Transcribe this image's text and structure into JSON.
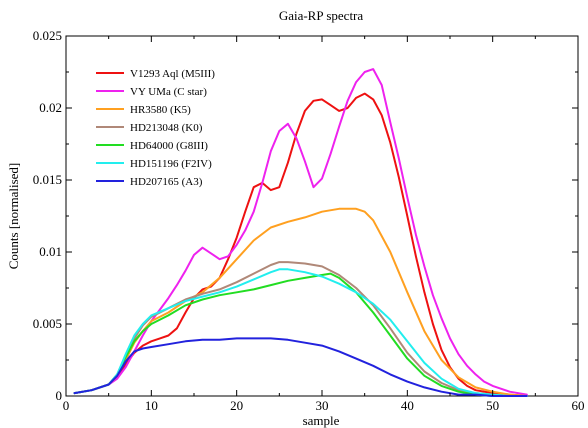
{
  "chart_data": {
    "type": "line",
    "title": "Gaia-RP spectra",
    "xlabel": "sample",
    "ylabel": "Counts [normalised]",
    "xlim": [
      0,
      60
    ],
    "ylim": [
      0,
      0.025
    ],
    "xticks": [
      0,
      10,
      20,
      30,
      40,
      50,
      60
    ],
    "xtick_labels": [
      "0",
      "10",
      "20",
      "30",
      "40",
      "50",
      "60"
    ],
    "yticks": [
      0,
      0.005,
      0.01,
      0.015,
      0.02,
      0.025
    ],
    "ytick_labels": [
      "0",
      "0.005",
      "0.01",
      "0.015",
      "0.02",
      "0.025"
    ],
    "grid": false,
    "legend_position": "top-left",
    "series": [
      {
        "name": "V1293 Aql (M5III)",
        "color": "#ee1111",
        "x": [
          1,
          3,
          5,
          6,
          7,
          8,
          9,
          10,
          11,
          12,
          13,
          14,
          15,
          16,
          17,
          18,
          19,
          20,
          21,
          22,
          23,
          24,
          25,
          26,
          27,
          28,
          29,
          30,
          31,
          32,
          33,
          34,
          35,
          36,
          37,
          38,
          39,
          40,
          41,
          42,
          43,
          44,
          45,
          46,
          47,
          48,
          50,
          52,
          54
        ],
        "y": [
          0.0002,
          0.0004,
          0.0008,
          0.0013,
          0.0022,
          0.003,
          0.0035,
          0.0038,
          0.004,
          0.0042,
          0.0047,
          0.0058,
          0.0068,
          0.0074,
          0.0076,
          0.0082,
          0.0095,
          0.011,
          0.0128,
          0.0145,
          0.0148,
          0.0143,
          0.0145,
          0.0162,
          0.0182,
          0.0198,
          0.0205,
          0.0206,
          0.0202,
          0.0198,
          0.02,
          0.0207,
          0.021,
          0.0206,
          0.0195,
          0.0176,
          0.0152,
          0.0125,
          0.0097,
          0.0072,
          0.005,
          0.0032,
          0.002,
          0.0012,
          0.0007,
          0.0004,
          0.0002,
          0.0001,
          0.0
        ]
      },
      {
        "name": "VY UMa (C star)",
        "color": "#ee22ee",
        "x": [
          1,
          3,
          5,
          6,
          7,
          8,
          9,
          10,
          11,
          12,
          13,
          14,
          15,
          16,
          17,
          18,
          19,
          20,
          21,
          22,
          23,
          24,
          25,
          26,
          27,
          28,
          29,
          30,
          31,
          32,
          33,
          34,
          35,
          36,
          37,
          38,
          39,
          40,
          41,
          42,
          43,
          44,
          45,
          46,
          47,
          48,
          49,
          50,
          52,
          54
        ],
        "y": [
          0.0002,
          0.0004,
          0.0008,
          0.0012,
          0.002,
          0.0031,
          0.0042,
          0.0052,
          0.006,
          0.0068,
          0.0077,
          0.0087,
          0.0098,
          0.0103,
          0.0099,
          0.0095,
          0.0097,
          0.0105,
          0.0115,
          0.0128,
          0.0148,
          0.017,
          0.0184,
          0.0189,
          0.0179,
          0.0163,
          0.0145,
          0.0151,
          0.0168,
          0.0187,
          0.0205,
          0.0218,
          0.0225,
          0.0227,
          0.0216,
          0.019,
          0.0165,
          0.0138,
          0.0112,
          0.009,
          0.007,
          0.0054,
          0.004,
          0.0029,
          0.0021,
          0.0015,
          0.001,
          0.0007,
          0.0003,
          0.0001
        ]
      },
      {
        "name": "HR3580 (K5)",
        "color": "#ffa020",
        "x": [
          1,
          3,
          5,
          6,
          7,
          8,
          9,
          10,
          12,
          14,
          16,
          18,
          20,
          22,
          24,
          26,
          28,
          30,
          32,
          34,
          35,
          36,
          38,
          40,
          42,
          44,
          46,
          48,
          50,
          52,
          54
        ],
        "y": [
          0.0002,
          0.0004,
          0.0008,
          0.0014,
          0.0025,
          0.0037,
          0.0045,
          0.0052,
          0.0058,
          0.0066,
          0.0072,
          0.0082,
          0.0095,
          0.0108,
          0.0117,
          0.0121,
          0.0124,
          0.0128,
          0.013,
          0.013,
          0.0128,
          0.0122,
          0.01,
          0.0072,
          0.0045,
          0.0025,
          0.0013,
          0.0006,
          0.0003,
          0.0001,
          0.0
        ]
      },
      {
        "name": "HD213048 (K0)",
        "color": "#b08878",
        "x": [
          1,
          3,
          5,
          6,
          7,
          8,
          9,
          10,
          12,
          14,
          16,
          18,
          20,
          22,
          24,
          25,
          26,
          28,
          30,
          32,
          34,
          36,
          38,
          40,
          42,
          44,
          46,
          48,
          50,
          52,
          54
        ],
        "y": [
          0.0002,
          0.0004,
          0.0008,
          0.0015,
          0.0028,
          0.004,
          0.0049,
          0.0055,
          0.0061,
          0.0067,
          0.0071,
          0.0074,
          0.0079,
          0.0085,
          0.0091,
          0.0093,
          0.0093,
          0.0092,
          0.009,
          0.0084,
          0.0075,
          0.0063,
          0.0047,
          0.003,
          0.0017,
          0.0009,
          0.0004,
          0.0002,
          0.0001,
          0.0,
          0.0
        ]
      },
      {
        "name": "HD64000 (G8III)",
        "color": "#22dd22",
        "x": [
          1,
          3,
          5,
          6,
          7,
          8,
          9,
          10,
          12,
          14,
          16,
          18,
          20,
          22,
          24,
          26,
          28,
          30,
          31,
          32,
          34,
          36,
          38,
          40,
          42,
          44,
          46,
          48,
          50,
          52,
          54
        ],
        "y": [
          0.0002,
          0.0004,
          0.0008,
          0.0015,
          0.0027,
          0.0038,
          0.0045,
          0.005,
          0.0056,
          0.0063,
          0.0067,
          0.007,
          0.0072,
          0.0074,
          0.0077,
          0.008,
          0.0082,
          0.0084,
          0.0085,
          0.0082,
          0.0072,
          0.0058,
          0.0042,
          0.0026,
          0.0014,
          0.0007,
          0.0003,
          0.0001,
          0.0,
          0.0,
          0.0
        ]
      },
      {
        "name": "HD151196 (F2IV)",
        "color": "#22eeee",
        "x": [
          1,
          3,
          5,
          6,
          7,
          8,
          9,
          10,
          12,
          14,
          16,
          18,
          20,
          22,
          24,
          25,
          26,
          28,
          30,
          32,
          34,
          36,
          38,
          40,
          42,
          44,
          46,
          48,
          50,
          52,
          54
        ],
        "y": [
          0.0002,
          0.0004,
          0.0008,
          0.0015,
          0.0029,
          0.0042,
          0.005,
          0.0056,
          0.0061,
          0.0066,
          0.0069,
          0.0072,
          0.0076,
          0.0081,
          0.0086,
          0.0088,
          0.0088,
          0.0086,
          0.0083,
          0.0078,
          0.0072,
          0.0064,
          0.0053,
          0.0038,
          0.0023,
          0.0012,
          0.0005,
          0.0002,
          0.0001,
          0.0,
          0.0
        ]
      },
      {
        "name": "HD207165 (A3)",
        "color": "#2222dd",
        "x": [
          1,
          3,
          5,
          6,
          7,
          8,
          9,
          10,
          12,
          14,
          16,
          18,
          20,
          22,
          24,
          26,
          28,
          30,
          32,
          34,
          36,
          38,
          40,
          42,
          44,
          46,
          48,
          50,
          52,
          54
        ],
        "y": [
          0.0002,
          0.0004,
          0.0008,
          0.0014,
          0.0024,
          0.0031,
          0.0033,
          0.0034,
          0.0036,
          0.0038,
          0.0039,
          0.0039,
          0.004,
          0.004,
          0.004,
          0.0039,
          0.0037,
          0.0035,
          0.0031,
          0.0026,
          0.0021,
          0.0015,
          0.001,
          0.0006,
          0.0003,
          0.0001,
          0.0001,
          0.0,
          0.0,
          0.0
        ]
      }
    ]
  }
}
